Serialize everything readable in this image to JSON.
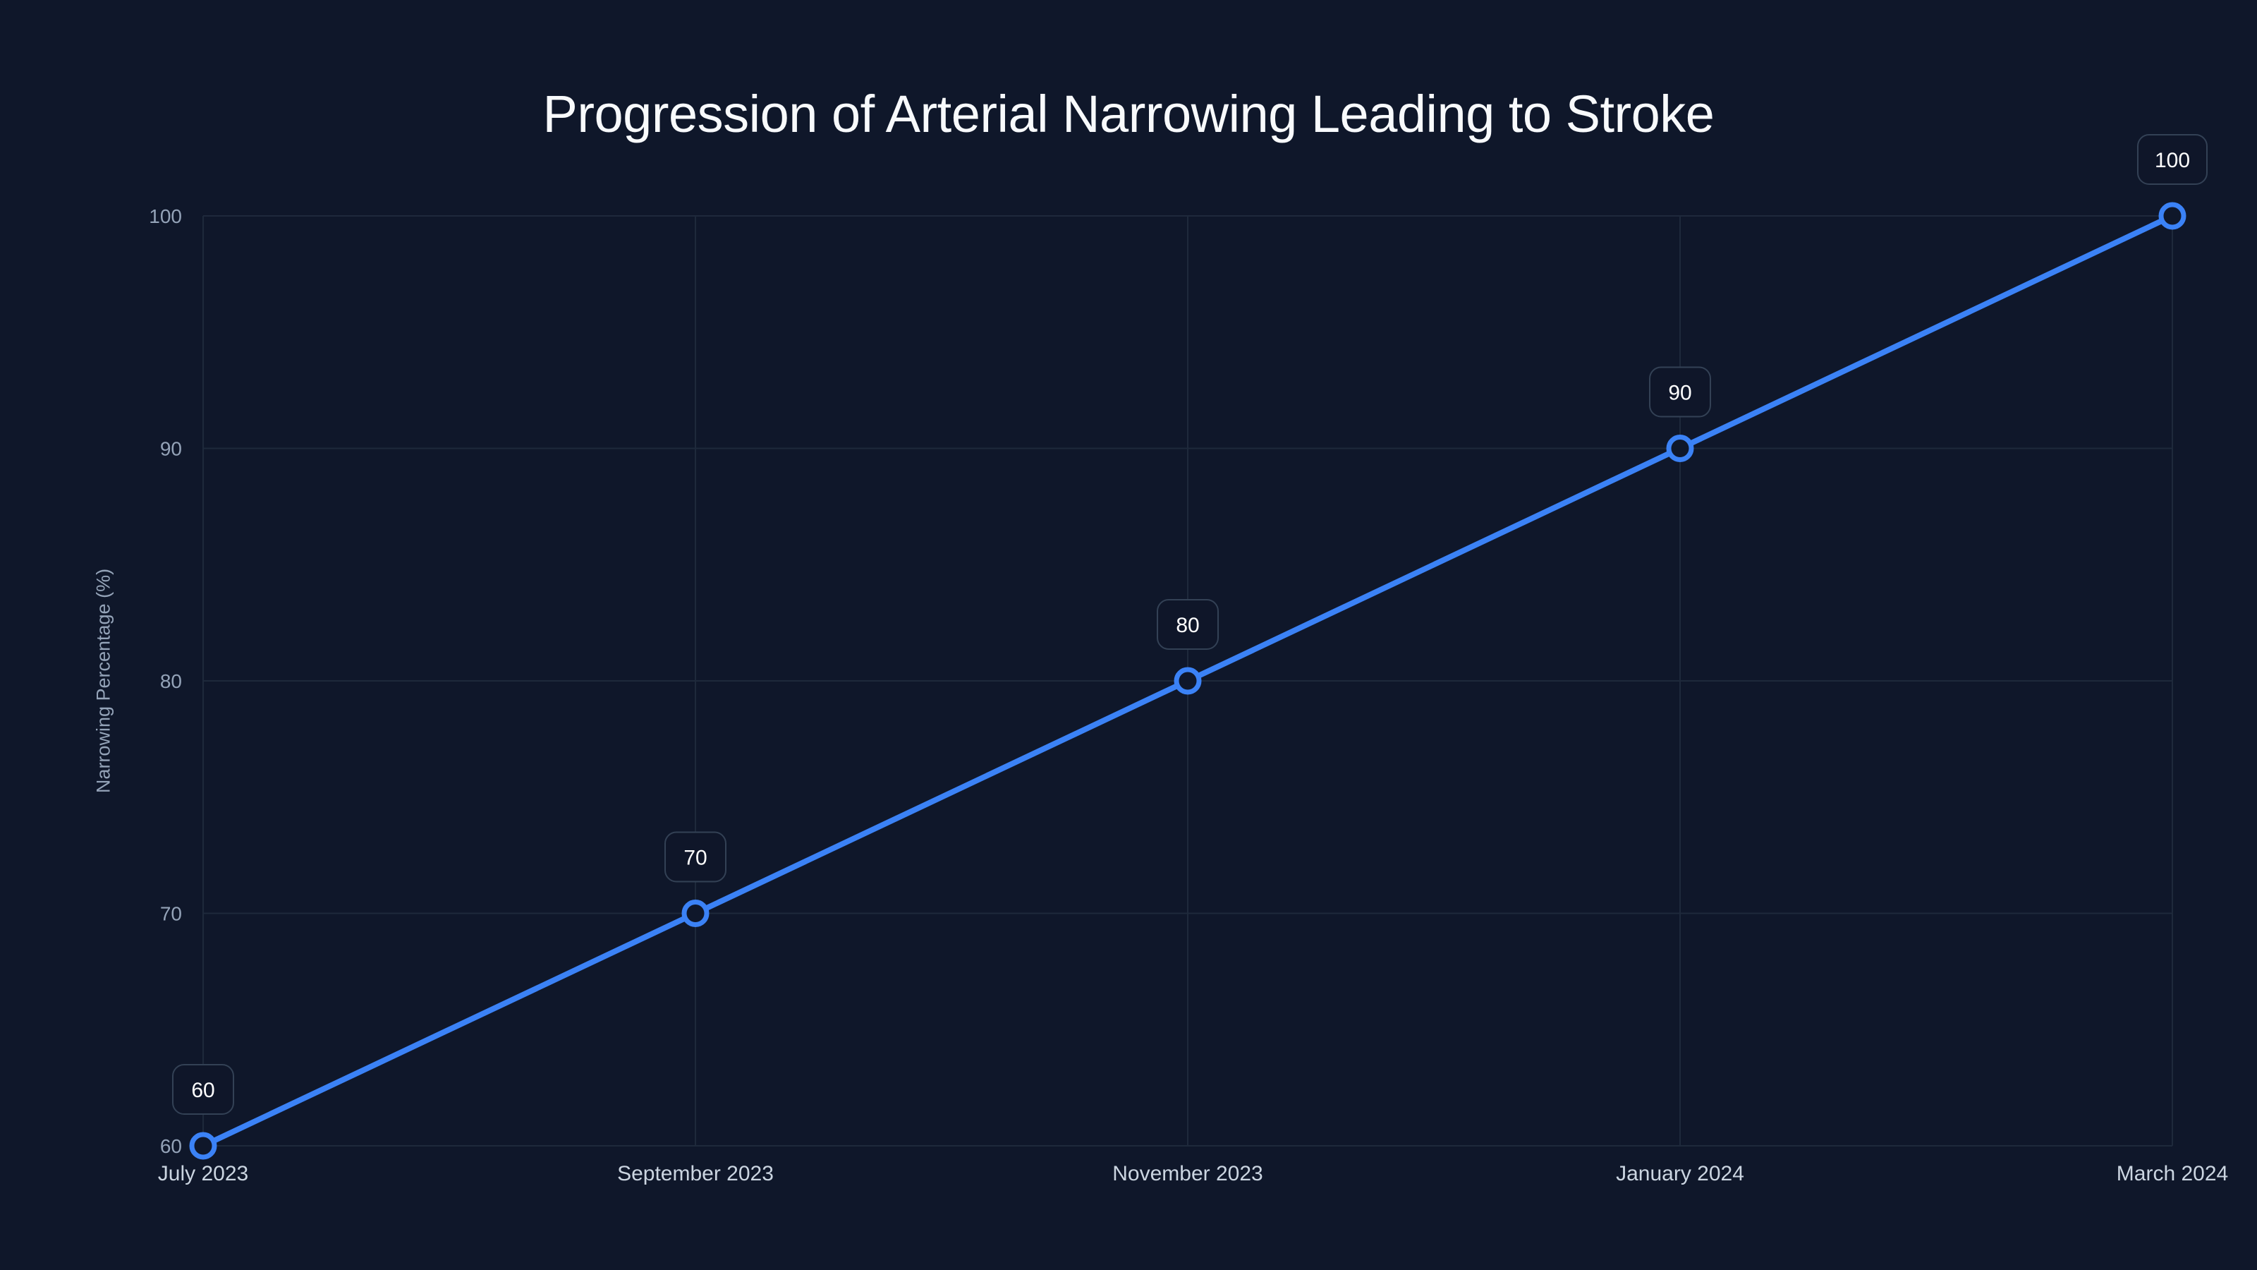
{
  "title": "Progression of Arterial Narrowing Leading to Stroke",
  "colors": {
    "background": "#0f172a",
    "grid": "#1e293b",
    "line": "#3b82f6",
    "marker_fill": "#0f172a",
    "label_box_fill": "#0f1629",
    "label_box_stroke": "#334155",
    "tick_y": "#94a3b8",
    "tick_x": "#cbd5e1",
    "title": "#f8fafc"
  },
  "chart_data": {
    "type": "line",
    "title": "Progression of Arterial Narrowing Leading to Stroke",
    "xlabel": "",
    "ylabel": "Narrowing Percentage (%)",
    "categories": [
      "July 2023",
      "September 2023",
      "November 2023",
      "January 2024",
      "March 2024"
    ],
    "series": [
      {
        "name": "Narrowing Percentage (%)",
        "values": [
          60,
          70,
          80,
          90,
          100
        ]
      }
    ],
    "ylim": [
      60,
      100
    ],
    "yticks": [
      60,
      70,
      80,
      90,
      100
    ],
    "grid": true,
    "legend": "none",
    "data_labels": true
  }
}
